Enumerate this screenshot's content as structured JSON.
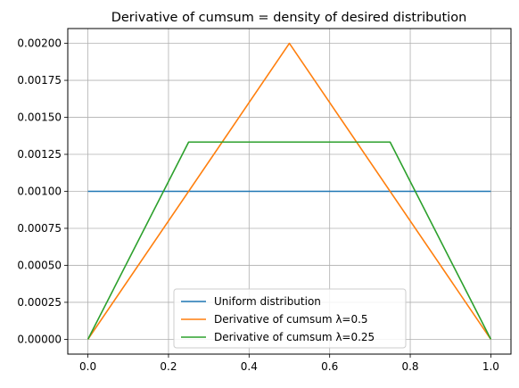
{
  "chart_data": {
    "type": "line",
    "title": "Derivative of cumsum = density of desired distribution",
    "xlabel": "",
    "ylabel": "",
    "xlim": [
      -0.05,
      1.05
    ],
    "ylim": [
      -0.0001,
      0.0021
    ],
    "x_ticks": [
      0.0,
      0.2,
      0.4,
      0.6,
      0.8,
      1.0
    ],
    "x_tick_labels": [
      "0.0",
      "0.2",
      "0.4",
      "0.6",
      "0.8",
      "1.0"
    ],
    "y_ticks": [
      0,
      0.00025,
      0.0005,
      0.00075,
      0.001,
      0.00125,
      0.0015,
      0.00175,
      0.002
    ],
    "y_tick_labels": [
      "0.00000",
      "0.00025",
      "0.00050",
      "0.00075",
      "0.00100",
      "0.00125",
      "0.00150",
      "0.00175",
      "0.00200"
    ],
    "grid": true,
    "legend_placement": "lower-center",
    "series": [
      {
        "name": "Uniform distribution",
        "color": "#1f77b4",
        "x": [
          0.0,
          1.0
        ],
        "y": [
          0.001,
          0.001
        ]
      },
      {
        "name": "Derivative of cumsum λ=0.5",
        "color": "#ff7f0e",
        "x": [
          0.0,
          0.5,
          1.0
        ],
        "y": [
          0.0,
          0.002,
          0.0
        ]
      },
      {
        "name": "Derivative of cumsum λ=0.25",
        "color": "#2ca02c",
        "x": [
          0.0,
          0.25,
          0.75,
          1.0
        ],
        "y": [
          0.0,
          0.001333,
          0.001333,
          0.0
        ]
      }
    ]
  }
}
